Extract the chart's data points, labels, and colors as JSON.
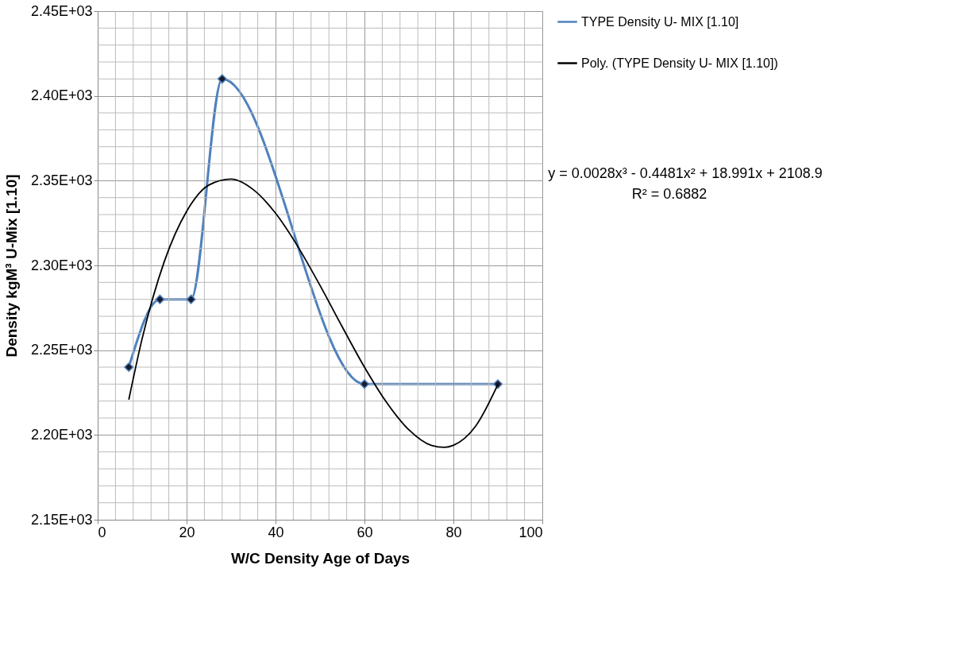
{
  "chart_data": {
    "type": "line",
    "xlabel": "W/C Density Age of Days",
    "ylabel": "Density kgM³  U-Mix [1.10]",
    "xlim": [
      0,
      100
    ],
    "xticks": [
      0,
      20,
      40,
      60,
      80,
      100
    ],
    "ylim": [
      2150,
      2450
    ],
    "yticks": [
      {
        "value": 2150,
        "label": "2.15E+03"
      },
      {
        "value": 2200,
        "label": "2.20E+03"
      },
      {
        "value": 2250,
        "label": "2.25E+03"
      },
      {
        "value": 2300,
        "label": "2.30E+03"
      },
      {
        "value": 2350,
        "label": "2.35E+03"
      },
      {
        "value": 2400,
        "label": "2.40E+03"
      },
      {
        "value": 2450,
        "label": "2.45E+03"
      }
    ],
    "grid": true,
    "legend": "right",
    "annotations": [
      "y = 0.0028x³ - 0.4481x² + 18.991x + 2108.9",
      "R² = 0.6882"
    ],
    "series": [
      {
        "name": "TYPE  Density U- MIX [1.10]",
        "color": "#4f81bd",
        "marker": "diamond",
        "x": [
          7,
          14,
          21,
          28,
          60,
          90
        ],
        "values": [
          2240,
          2280,
          2280,
          2410,
          2230,
          2230
        ]
      },
      {
        "name": "Poly. (TYPE  Density U- MIX [1.10])",
        "color": "#000000",
        "marker": "none",
        "x": [
          7,
          10,
          15,
          20,
          25,
          30,
          35,
          40,
          45,
          50,
          55,
          60,
          65,
          70,
          75,
          78,
          80,
          85,
          90
        ],
        "values": [
          2220.8,
          2256.8,
          2302.4,
          2331.9,
          2347.4,
          2350.9,
          2344.7,
          2330.8,
          2311.2,
          2288.2,
          2263.8,
          2240.0,
          2219.1,
          2203.0,
          2193.9,
          2192.7,
          2193.9,
          2205.2,
          2229.7
        ]
      }
    ]
  }
}
